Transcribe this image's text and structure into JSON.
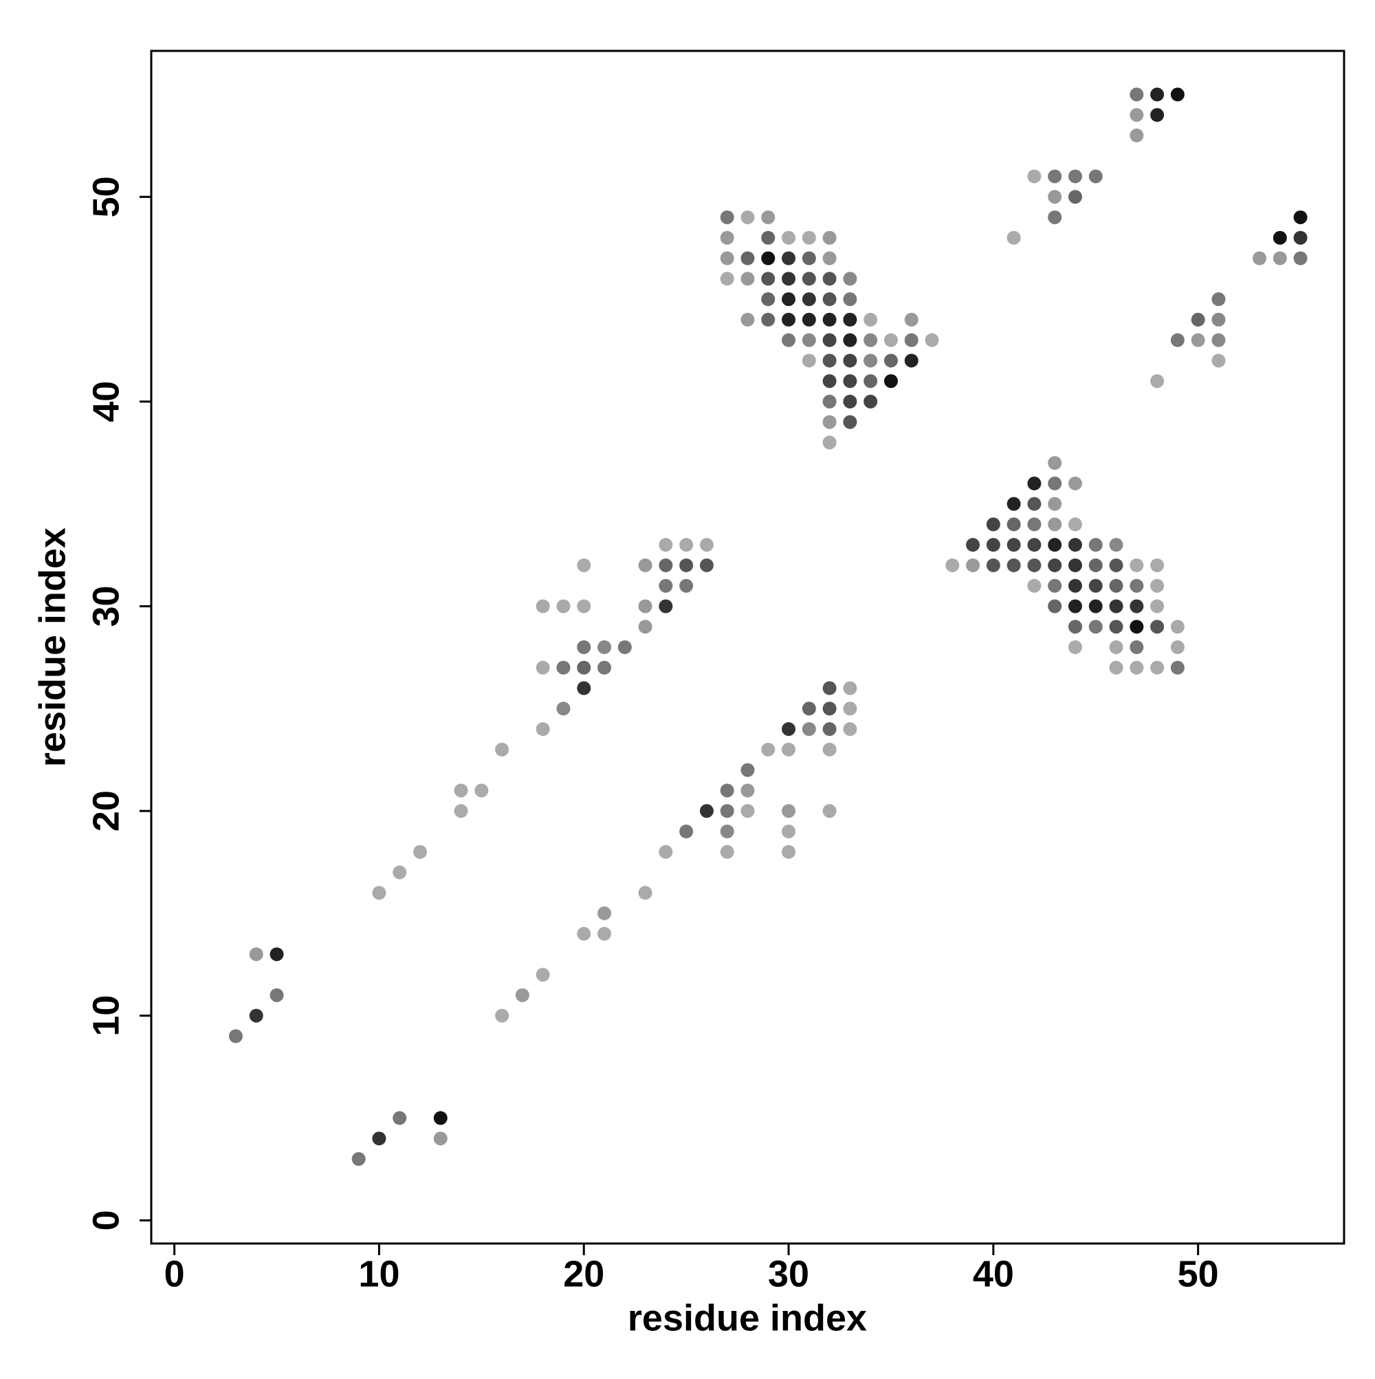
{
  "chart_data": {
    "type": "scatter",
    "xlabel": "residue index",
    "ylabel": "residue index",
    "xlim": [
      -1.13,
      57.13
    ],
    "ylim": [
      -1.13,
      57.13
    ],
    "xticks": [
      0,
      10,
      20,
      30,
      40,
      50
    ],
    "yticks": [
      0,
      10,
      20,
      30,
      40,
      50
    ],
    "x": [
      47,
      48,
      49,
      47,
      48,
      47,
      42,
      43,
      44,
      45,
      43,
      44,
      27,
      28,
      29,
      43,
      55,
      27,
      29,
      30,
      31,
      32,
      41,
      54,
      55,
      27,
      28,
      29,
      30,
      31,
      32,
      53,
      54,
      55,
      27,
      28,
      29,
      30,
      31,
      32,
      33,
      29,
      30,
      31,
      32,
      33,
      51,
      28,
      29,
      30,
      31,
      32,
      33,
      34,
      36,
      50,
      51,
      30,
      31,
      32,
      33,
      34,
      35,
      36,
      37,
      49,
      50,
      51,
      31,
      32,
      33,
      34,
      35,
      36,
      51,
      32,
      33,
      34,
      35,
      48,
      32,
      33,
      34,
      32,
      33,
      32,
      43,
      42,
      43,
      44,
      41,
      42,
      43,
      40,
      41,
      42,
      43,
      44,
      24,
      25,
      26,
      39,
      40,
      41,
      42,
      43,
      44,
      45,
      46,
      20,
      23,
      24,
      25,
      26,
      38,
      39,
      40,
      41,
      42,
      43,
      44,
      45,
      46,
      47,
      48,
      24,
      25,
      42,
      43,
      44,
      45,
      46,
      47,
      48,
      18,
      19,
      20,
      23,
      24,
      43,
      44,
      45,
      46,
      47,
      48,
      23,
      44,
      45,
      46,
      47,
      48,
      49,
      20,
      21,
      22,
      44,
      46,
      47,
      49,
      18,
      19,
      20,
      21,
      46,
      47,
      48,
      49,
      20,
      32,
      33,
      19,
      31,
      32,
      33,
      18,
      30,
      31,
      32,
      33,
      16,
      29,
      30,
      32,
      28,
      14,
      15,
      27,
      28,
      14,
      26,
      27,
      28,
      30,
      32,
      25,
      27,
      30,
      12,
      24,
      27,
      30,
      11,
      10,
      23,
      21,
      20,
      21,
      4,
      5,
      18,
      5,
      17,
      4,
      16,
      3,
      11,
      13,
      10,
      13,
      9
    ],
    "values": [
      55,
      55,
      55,
      54,
      54,
      53,
      51,
      51,
      51,
      51,
      50,
      50,
      49,
      49,
      49,
      49,
      49,
      48,
      48,
      48,
      48,
      48,
      48,
      48,
      48,
      47,
      47,
      47,
      47,
      47,
      47,
      47,
      47,
      47,
      46,
      46,
      46,
      46,
      46,
      46,
      46,
      45,
      45,
      45,
      45,
      45,
      45,
      44,
      44,
      44,
      44,
      44,
      44,
      44,
      44,
      44,
      44,
      43,
      43,
      43,
      43,
      43,
      43,
      43,
      43,
      43,
      43,
      43,
      42,
      42,
      42,
      42,
      42,
      42,
      42,
      41,
      41,
      41,
      41,
      41,
      40,
      40,
      40,
      39,
      39,
      38,
      37,
      36,
      36,
      36,
      35,
      35,
      35,
      34,
      34,
      34,
      34,
      34,
      33,
      33,
      33,
      33,
      33,
      33,
      33,
      33,
      33,
      33,
      33,
      32,
      32,
      32,
      32,
      32,
      32,
      32,
      32,
      32,
      32,
      32,
      32,
      32,
      32,
      32,
      32,
      31,
      31,
      31,
      31,
      31,
      31,
      31,
      31,
      31,
      30,
      30,
      30,
      30,
      30,
      30,
      30,
      30,
      30,
      30,
      30,
      29,
      29,
      29,
      29,
      29,
      29,
      29,
      28,
      28,
      28,
      28,
      28,
      28,
      28,
      27,
      27,
      27,
      27,
      27,
      27,
      27,
      27,
      26,
      26,
      26,
      25,
      25,
      25,
      25,
      24,
      24,
      24,
      24,
      24,
      23,
      23,
      23,
      23,
      22,
      21,
      21,
      21,
      21,
      20,
      20,
      20,
      20,
      20,
      20,
      19,
      19,
      19,
      18,
      18,
      18,
      18,
      17,
      16,
      16,
      15,
      14,
      14,
      13,
      13,
      12,
      11,
      11,
      10,
      10,
      9,
      5,
      5,
      4,
      4,
      3
    ],
    "colors": [
      "#777",
      "#222",
      "#111",
      "#999",
      "#222",
      "#999",
      "#aaa",
      "#777",
      "#777",
      "#777",
      "#999",
      "#666",
      "#777",
      "#aaa",
      "#999",
      "#777",
      "#111",
      "#999",
      "#666",
      "#aaa",
      "#aaa",
      "#999",
      "#aaa",
      "#111",
      "#333",
      "#999",
      "#666",
      "#111",
      "#333",
      "#666",
      "#999",
      "#999",
      "#999",
      "#777",
      "#aaa",
      "#999",
      "#555",
      "#333",
      "#555",
      "#555",
      "#888",
      "#666",
      "#222",
      "#333",
      "#555",
      "#777",
      "#777",
      "#999",
      "#666",
      "#222",
      "#222",
      "#222",
      "#222",
      "#aaa",
      "#999",
      "#666",
      "#888",
      "#777",
      "#888",
      "#444",
      "#222",
      "#888",
      "#aaa",
      "#777",
      "#aaa",
      "#777",
      "#999",
      "#888",
      "#aaa",
      "#555",
      "#444",
      "#888",
      "#666",
      "#222",
      "#aaa",
      "#444",
      "#444",
      "#666",
      "#111",
      "#aaa",
      "#777",
      "#444",
      "#444",
      "#999",
      "#555",
      "#aaa",
      "#999",
      "#222",
      "#777",
      "#999",
      "#222",
      "#555",
      "#999",
      "#444",
      "#666",
      "#777",
      "#999",
      "#aaa",
      "#aaa",
      "#aaa",
      "#aaa",
      "#444",
      "#444",
      "#444",
      "#444",
      "#222",
      "#333",
      "#777",
      "#888",
      "#aaa",
      "#999",
      "#666",
      "#555",
      "#555",
      "#aaa",
      "#999",
      "#555",
      "#555",
      "#555",
      "#444",
      "#333",
      "#666",
      "#555",
      "#aaa",
      "#aaa",
      "#777",
      "#777",
      "#aaa",
      "#777",
      "#333",
      "#444",
      "#666",
      "#777",
      "#aaa",
      "#aaa",
      "#aaa",
      "#aaa",
      "#999",
      "#333",
      "#666",
      "#222",
      "#222",
      "#333",
      "#333",
      "#aaa",
      "#999",
      "#666",
      "#777",
      "#555",
      "#111",
      "#555",
      "#aaa",
      "#777",
      "#888",
      "#777",
      "#aaa",
      "#aaa",
      "#777",
      "#aaa",
      "#aaa",
      "#777",
      "#666",
      "#777",
      "#aaa",
      "#aaa",
      "#aaa",
      "#777",
      "#333",
      "#555",
      "#aaa",
      "#888",
      "#666",
      "#555",
      "#aaa",
      "#aaa",
      "#333",
      "#888",
      "#666",
      "#aaa",
      "#aaa",
      "#aaa",
      "#aaa",
      "#aaa",
      "#777",
      "#aaa",
      "#aaa",
      "#777",
      "#999",
      "#aaa",
      "#333",
      "#777",
      "#aaa",
      "#999",
      "#aaa",
      "#777",
      "#888",
      "#aaa",
      "#aaa",
      "#aaa",
      "#aaa",
      "#aaa",
      "#aaa",
      "#aaa",
      "#aaa",
      "#999",
      "#aaa",
      "#aaa",
      "#999",
      "#222",
      "#aaa",
      "#777",
      "#999",
      "#333",
      "#aaa",
      "#777",
      "#777",
      "#111",
      "#333",
      "#999",
      "#777"
    ]
  }
}
